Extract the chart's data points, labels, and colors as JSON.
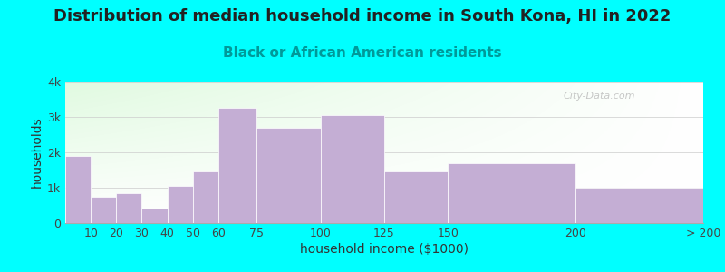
{
  "title": "Distribution of median household income in South Kona, HI in 2022",
  "subtitle": "Black or African American residents",
  "xlabel": "household income ($1000)",
  "ylabel": "households",
  "background_color": "#00FFFF",
  "bar_color": "#C4AED4",
  "bar_edge_color": "#FFFFFF",
  "bin_lefts": [
    0,
    10,
    20,
    30,
    40,
    50,
    60,
    75,
    100,
    125,
    150,
    200
  ],
  "bin_rights": [
    10,
    20,
    30,
    40,
    50,
    60,
    75,
    100,
    125,
    150,
    200,
    250
  ],
  "values": [
    1900,
    750,
    850,
    400,
    1050,
    1450,
    3250,
    2700,
    3050,
    1450,
    1700,
    1000
  ],
  "xtick_positions": [
    10,
    20,
    30,
    40,
    50,
    60,
    75,
    100,
    125,
    150,
    200,
    250
  ],
  "xtick_labels": [
    "10",
    "20",
    "30",
    "40",
    "50",
    "60",
    "75",
    "100",
    "125",
    "150",
    "200",
    "> 200"
  ],
  "ylim": [
    0,
    4000
  ],
  "xlim": [
    0,
    250
  ],
  "yticks": [
    0,
    1000,
    2000,
    3000,
    4000
  ],
  "ytick_labels": [
    "0",
    "1k",
    "2k",
    "3k",
    "4k"
  ],
  "title_fontsize": 13,
  "subtitle_fontsize": 11,
  "axis_label_fontsize": 10,
  "tick_fontsize": 9,
  "title_color": "#222222",
  "subtitle_color": "#009999",
  "watermark": "City-Data.com"
}
